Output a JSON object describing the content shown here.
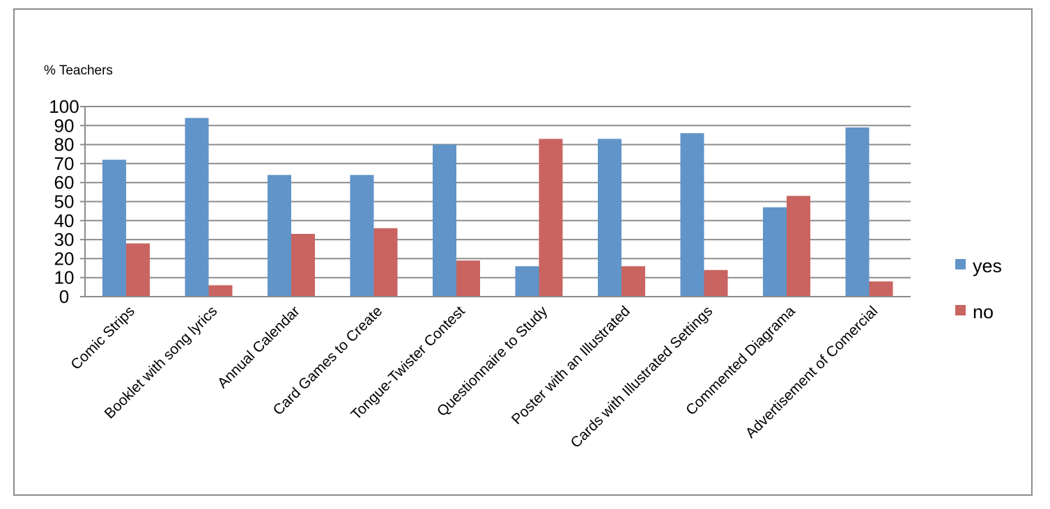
{
  "chart_data": {
    "type": "bar",
    "title": "",
    "xlabel": "",
    "ylabel": "% Teachers",
    "ylim": [
      0,
      100
    ],
    "yticks": [
      0,
      10,
      20,
      30,
      40,
      50,
      60,
      70,
      80,
      90,
      100
    ],
    "grid": true,
    "legend_position": "right",
    "categories": [
      "Comic Strips",
      "Booklet with song lyrics",
      "Annual Calendar",
      "Card Games to Create",
      "Tongue-Twister Contest",
      "Questionnaire to Study",
      "Poster with an Illustrated",
      "Cards with Illustrated Settings",
      "Commented Diagrama",
      "Advertisement of Comercial"
    ],
    "series": [
      {
        "name": "yes",
        "color": "#6194c8",
        "values": [
          72,
          94,
          64,
          64,
          80,
          16,
          83,
          86,
          47,
          89
        ]
      },
      {
        "name": "no",
        "color": "#c96461",
        "values": [
          28,
          6,
          33,
          36,
          19,
          83,
          16,
          14,
          53,
          8
        ]
      }
    ]
  }
}
